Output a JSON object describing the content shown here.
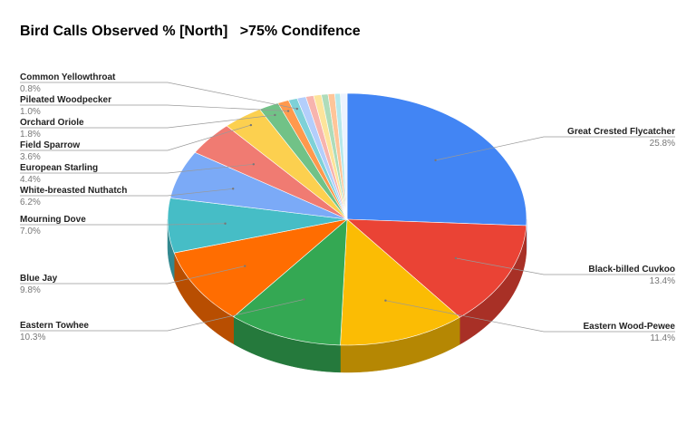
{
  "chart_data": {
    "type": "pie3d",
    "title": "Bird Calls Observed % [North]   >75% Condifence",
    "categories": [
      "Great Crested Flycatcher",
      "Black-billed Cuvkoo",
      "Eastern Wood-Pewee",
      "Eastern Towhee",
      "Blue Jay",
      "Mourning Dove",
      "White-breasted Nuthatch",
      "European Starling",
      "Field Sparrow",
      "Orchard Oriole",
      "Pileated Woodpecker",
      "Common Yellowthroat",
      null,
      null,
      null,
      null,
      null,
      null,
      null
    ],
    "values": [
      25.8,
      13.4,
      11.4,
      10.3,
      9.8,
      7.0,
      6.2,
      4.4,
      3.6,
      1.8,
      1.0,
      0.8,
      0.8,
      0.7,
      0.7,
      0.6,
      0.6,
      0.5,
      0.6
    ],
    "value_labels": [
      "25.8%",
      "13.4%",
      "11.4%",
      "10.3%",
      "9.8%",
      "7.0%",
      "6.2%",
      "4.4%",
      "3.6%",
      "1.8%",
      "1.0%",
      "0.8%",
      null,
      null,
      null,
      null,
      null,
      null,
      null
    ],
    "colors": [
      "#4285f4",
      "#ea4335",
      "#fbbc04",
      "#34a853",
      "#ff6d01",
      "#46bdc6",
      "#7baaf7",
      "#f07b72",
      "#fcd04f",
      "#71c287",
      "#ff994d",
      "#7ed1d7",
      "#b3cefb",
      "#f7b4ae",
      "#fde49b",
      "#aedcba",
      "#ffc599",
      "#b5e8eb",
      "#ecf3fe"
    ]
  }
}
